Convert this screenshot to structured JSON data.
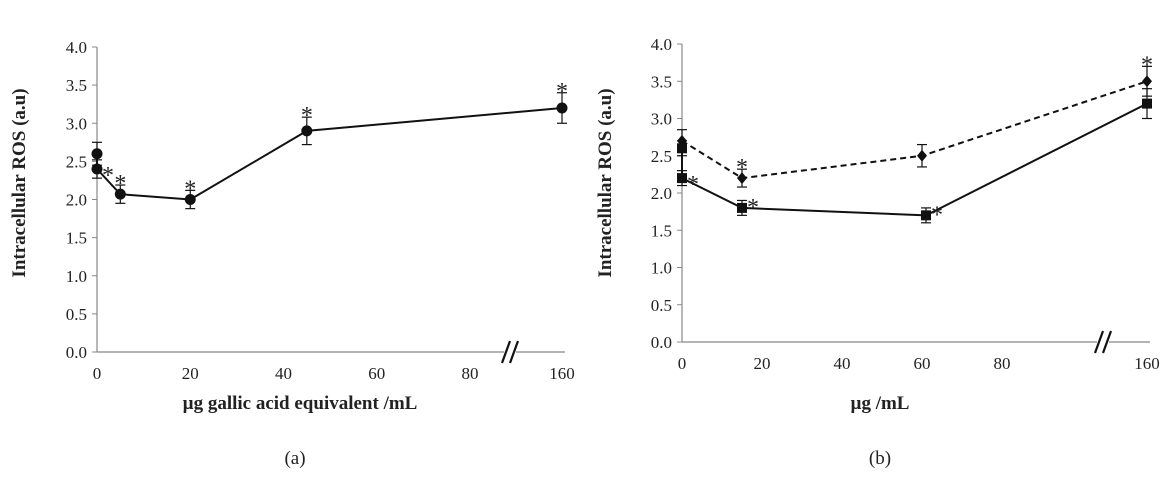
{
  "chart_data": [
    {
      "type": "line",
      "panel_label": "(a)",
      "xlabel": "µg gallic acid equivalent /mL",
      "ylabel": "Intracellular ROS (a.u)",
      "ylim": [
        0,
        4.0
      ],
      "yticks": [
        "0.0",
        "0.5",
        "1.0",
        "1.5",
        "2.0",
        "2.5",
        "3.0",
        "3.5",
        "4.0"
      ],
      "xticks": [
        "0",
        "20",
        "40",
        "60",
        "80",
        "160"
      ],
      "axis_break": true,
      "grid": false,
      "series": [
        {
          "style": "solid",
          "marker": "circle",
          "points": [
            {
              "x": 0,
              "y": 2.6,
              "err": 0.15,
              "star": false
            },
            {
              "x": 0,
              "y": 2.4,
              "err": 0.12,
              "star": true
            },
            {
              "x": 5,
              "y": 2.07,
              "err": 0.12,
              "star": true
            },
            {
              "x": 20,
              "y": 2.0,
              "err": 0.12,
              "star": true
            },
            {
              "x": 45,
              "y": 2.9,
              "err": 0.18,
              "star": true
            },
            {
              "x": 160,
              "y": 3.2,
              "err": 0.2,
              "star": true
            }
          ]
        }
      ]
    },
    {
      "type": "line",
      "panel_label": "(b)",
      "xlabel": "µg /mL",
      "ylabel": "Intracellular ROS (a.u)",
      "ylim": [
        0,
        4.0
      ],
      "yticks": [
        "0.0",
        "0.5",
        "1.0",
        "1.5",
        "2.0",
        "2.5",
        "3.0",
        "3.5",
        "4.0"
      ],
      "xticks": [
        "0",
        "20",
        "40",
        "60",
        "80",
        "160"
      ],
      "axis_break": true,
      "grid": false,
      "series": [
        {
          "style": "dashed",
          "marker": "diamond",
          "points": [
            {
              "x": 0,
              "y": 2.7,
              "err": 0.15,
              "star": false
            },
            {
              "x": 15,
              "y": 2.2,
              "err": 0.12,
              "star": true
            },
            {
              "x": 60,
              "y": 2.5,
              "err": 0.15,
              "star": false
            },
            {
              "x": 160,
              "y": 3.5,
              "err": 0.2,
              "star": true
            }
          ]
        },
        {
          "style": "solid",
          "marker": "square",
          "points": [
            {
              "x": 0,
              "y": 2.6,
              "err": 0.1,
              "star": false
            },
            {
              "x": 0,
              "y": 2.2,
              "err": 0.1,
              "star": true
            },
            {
              "x": 15,
              "y": 1.8,
              "err": 0.1,
              "star": true
            },
            {
              "x": 61,
              "y": 1.7,
              "err": 0.1,
              "star": true
            },
            {
              "x": 160,
              "y": 3.2,
              "err": 0.2,
              "star": false
            }
          ]
        }
      ]
    }
  ]
}
